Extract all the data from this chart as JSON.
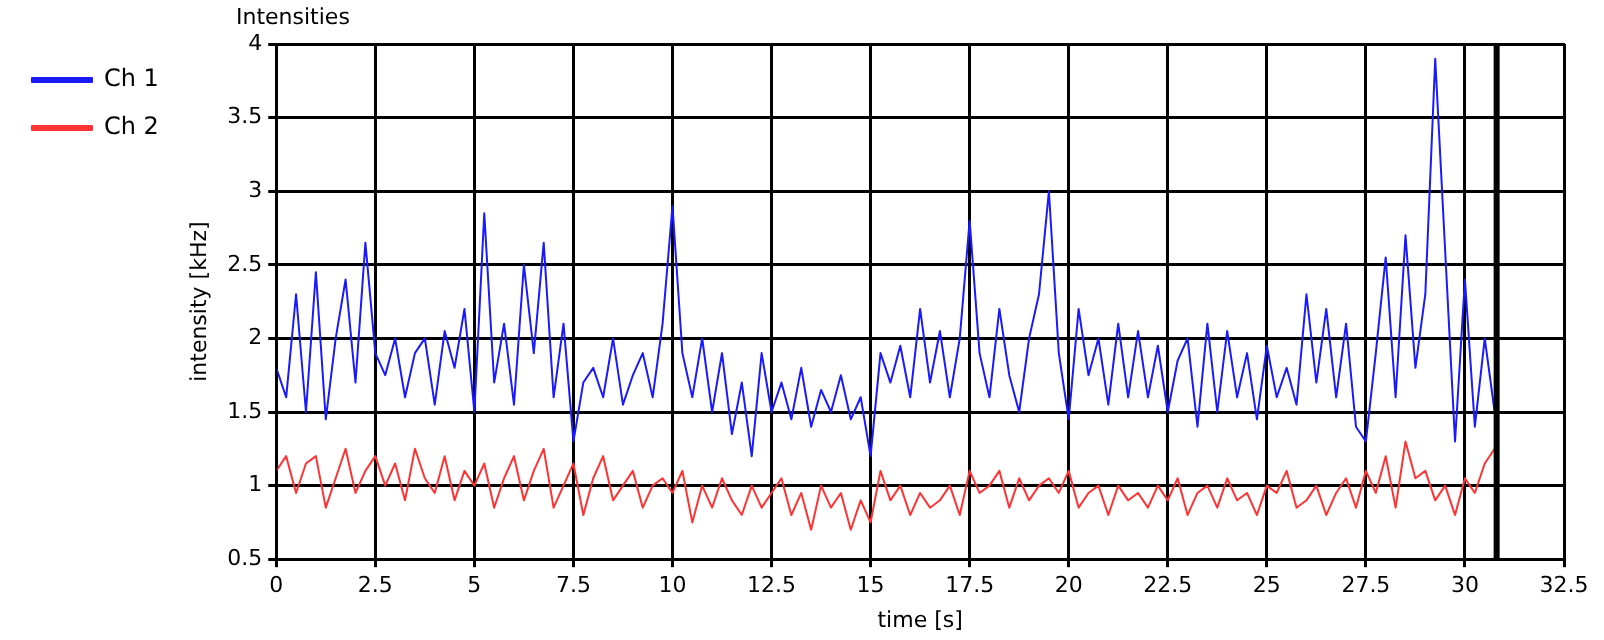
{
  "chart_data": {
    "type": "line",
    "title": "Intensities",
    "xlabel": "time [s]",
    "ylabel": "intensity [kHz]",
    "x": [
      0,
      0.25,
      0.5,
      0.75,
      1,
      1.25,
      1.5,
      1.75,
      2,
      2.25,
      2.5,
      2.75,
      3,
      3.25,
      3.5,
      3.75,
      4,
      4.25,
      4.5,
      4.75,
      5,
      5.25,
      5.5,
      5.75,
      6,
      6.25,
      6.5,
      6.75,
      7,
      7.25,
      7.5,
      7.75,
      8,
      8.25,
      8.5,
      8.75,
      9,
      9.25,
      9.5,
      9.75,
      10,
      10.25,
      10.5,
      10.75,
      11,
      11.25,
      11.5,
      11.75,
      12,
      12.25,
      12.5,
      12.75,
      13,
      13.25,
      13.5,
      13.75,
      14,
      14.25,
      14.5,
      14.75,
      15,
      15.25,
      15.5,
      15.75,
      16,
      16.25,
      16.5,
      16.75,
      17,
      17.25,
      17.5,
      17.75,
      18,
      18.25,
      18.5,
      18.75,
      19,
      19.25,
      19.5,
      19.75,
      20,
      20.25,
      20.5,
      20.75,
      21,
      21.25,
      21.5,
      21.75,
      22,
      22.25,
      22.5,
      22.75,
      23,
      23.25,
      23.5,
      23.75,
      24,
      24.25,
      24.5,
      24.75,
      25,
      25.25,
      25.5,
      25.75,
      26,
      26.25,
      26.5,
      26.75,
      27,
      27.25,
      27.5,
      27.75,
      28,
      28.25,
      28.5,
      28.75,
      29,
      29.25,
      29.5,
      29.75,
      30,
      30.25,
      30.5,
      30.75
    ],
    "series": [
      {
        "name": "Ch 1",
        "color": "#1a1aff",
        "values": [
          1.8,
          1.6,
          2.3,
          1.5,
          2.45,
          1.45,
          2.0,
          2.4,
          1.7,
          2.65,
          1.9,
          1.75,
          2.0,
          1.6,
          1.9,
          2.0,
          1.55,
          2.05,
          1.8,
          2.2,
          1.5,
          2.85,
          1.7,
          2.1,
          1.55,
          2.5,
          1.9,
          2.65,
          1.6,
          2.1,
          1.3,
          1.7,
          1.8,
          1.6,
          2.0,
          1.55,
          1.75,
          1.9,
          1.6,
          2.1,
          2.9,
          1.9,
          1.6,
          2.0,
          1.5,
          1.9,
          1.35,
          1.7,
          1.2,
          1.9,
          1.5,
          1.7,
          1.45,
          1.8,
          1.4,
          1.65,
          1.5,
          1.75,
          1.45,
          1.6,
          1.2,
          1.9,
          1.7,
          1.95,
          1.6,
          2.2,
          1.7,
          2.05,
          1.6,
          2.0,
          2.8,
          1.9,
          1.6,
          2.2,
          1.75,
          1.5,
          2.0,
          2.3,
          3.0,
          1.9,
          1.45,
          2.2,
          1.75,
          2.0,
          1.55,
          2.1,
          1.6,
          2.05,
          1.6,
          1.95,
          1.5,
          1.85,
          2.0,
          1.4,
          2.1,
          1.5,
          2.05,
          1.6,
          1.9,
          1.45,
          1.95,
          1.6,
          1.8,
          1.55,
          2.3,
          1.7,
          2.2,
          1.6,
          2.1,
          1.4,
          1.3,
          1.9,
          2.55,
          1.6,
          2.7,
          1.8,
          2.3,
          3.9,
          2.6,
          1.3,
          2.4,
          1.4,
          2.0,
          1.5
        ]
      },
      {
        "name": "Ch 2",
        "color": "#ff3333",
        "values": [
          1.1,
          1.2,
          0.95,
          1.15,
          1.2,
          0.85,
          1.05,
          1.25,
          0.95,
          1.1,
          1.2,
          1.0,
          1.15,
          0.9,
          1.25,
          1.05,
          0.95,
          1.2,
          0.9,
          1.1,
          1.0,
          1.15,
          0.85,
          1.05,
          1.2,
          0.9,
          1.1,
          1.25,
          0.85,
          1.0,
          1.15,
          0.8,
          1.05,
          1.2,
          0.9,
          1.0,
          1.1,
          0.85,
          1.0,
          1.05,
          0.95,
          1.1,
          0.75,
          1.0,
          0.85,
          1.05,
          0.9,
          0.8,
          1.0,
          0.85,
          0.95,
          1.05,
          0.8,
          0.95,
          0.7,
          1.0,
          0.85,
          0.95,
          0.7,
          0.9,
          0.75,
          1.1,
          0.9,
          1.0,
          0.8,
          0.95,
          0.85,
          0.9,
          1.0,
          0.8,
          1.1,
          0.95,
          1.0,
          1.1,
          0.85,
          1.05,
          0.9,
          1.0,
          1.05,
          0.95,
          1.1,
          0.85,
          0.95,
          1.0,
          0.8,
          1.0,
          0.9,
          0.95,
          0.85,
          1.0,
          0.9,
          1.05,
          0.8,
          0.95,
          1.0,
          0.85,
          1.05,
          0.9,
          0.95,
          0.8,
          1.0,
          0.95,
          1.1,
          0.85,
          0.9,
          1.0,
          0.8,
          0.95,
          1.05,
          0.85,
          1.1,
          0.95,
          1.2,
          0.85,
          1.3,
          1.05,
          1.1,
          0.9,
          1.0,
          0.8,
          1.05,
          0.95,
          1.15,
          1.25
        ]
      }
    ],
    "xlim": [
      0,
      32.5
    ],
    "xticks": [
      0,
      2.5,
      5,
      7.5,
      10,
      12.5,
      15,
      17.5,
      20,
      22.5,
      25,
      27.5,
      30,
      32.5
    ],
    "ylim": [
      0.5,
      4
    ],
    "yticks": [
      0.5,
      1,
      1.5,
      2,
      2.5,
      3,
      3.5,
      4
    ],
    "ref_lines": [
      {
        "axis": "x",
        "value": 30.8,
        "color": "#000000"
      }
    ],
    "grid": true,
    "legend": "top left",
    "marker": "none",
    "line_style": "solid"
  }
}
